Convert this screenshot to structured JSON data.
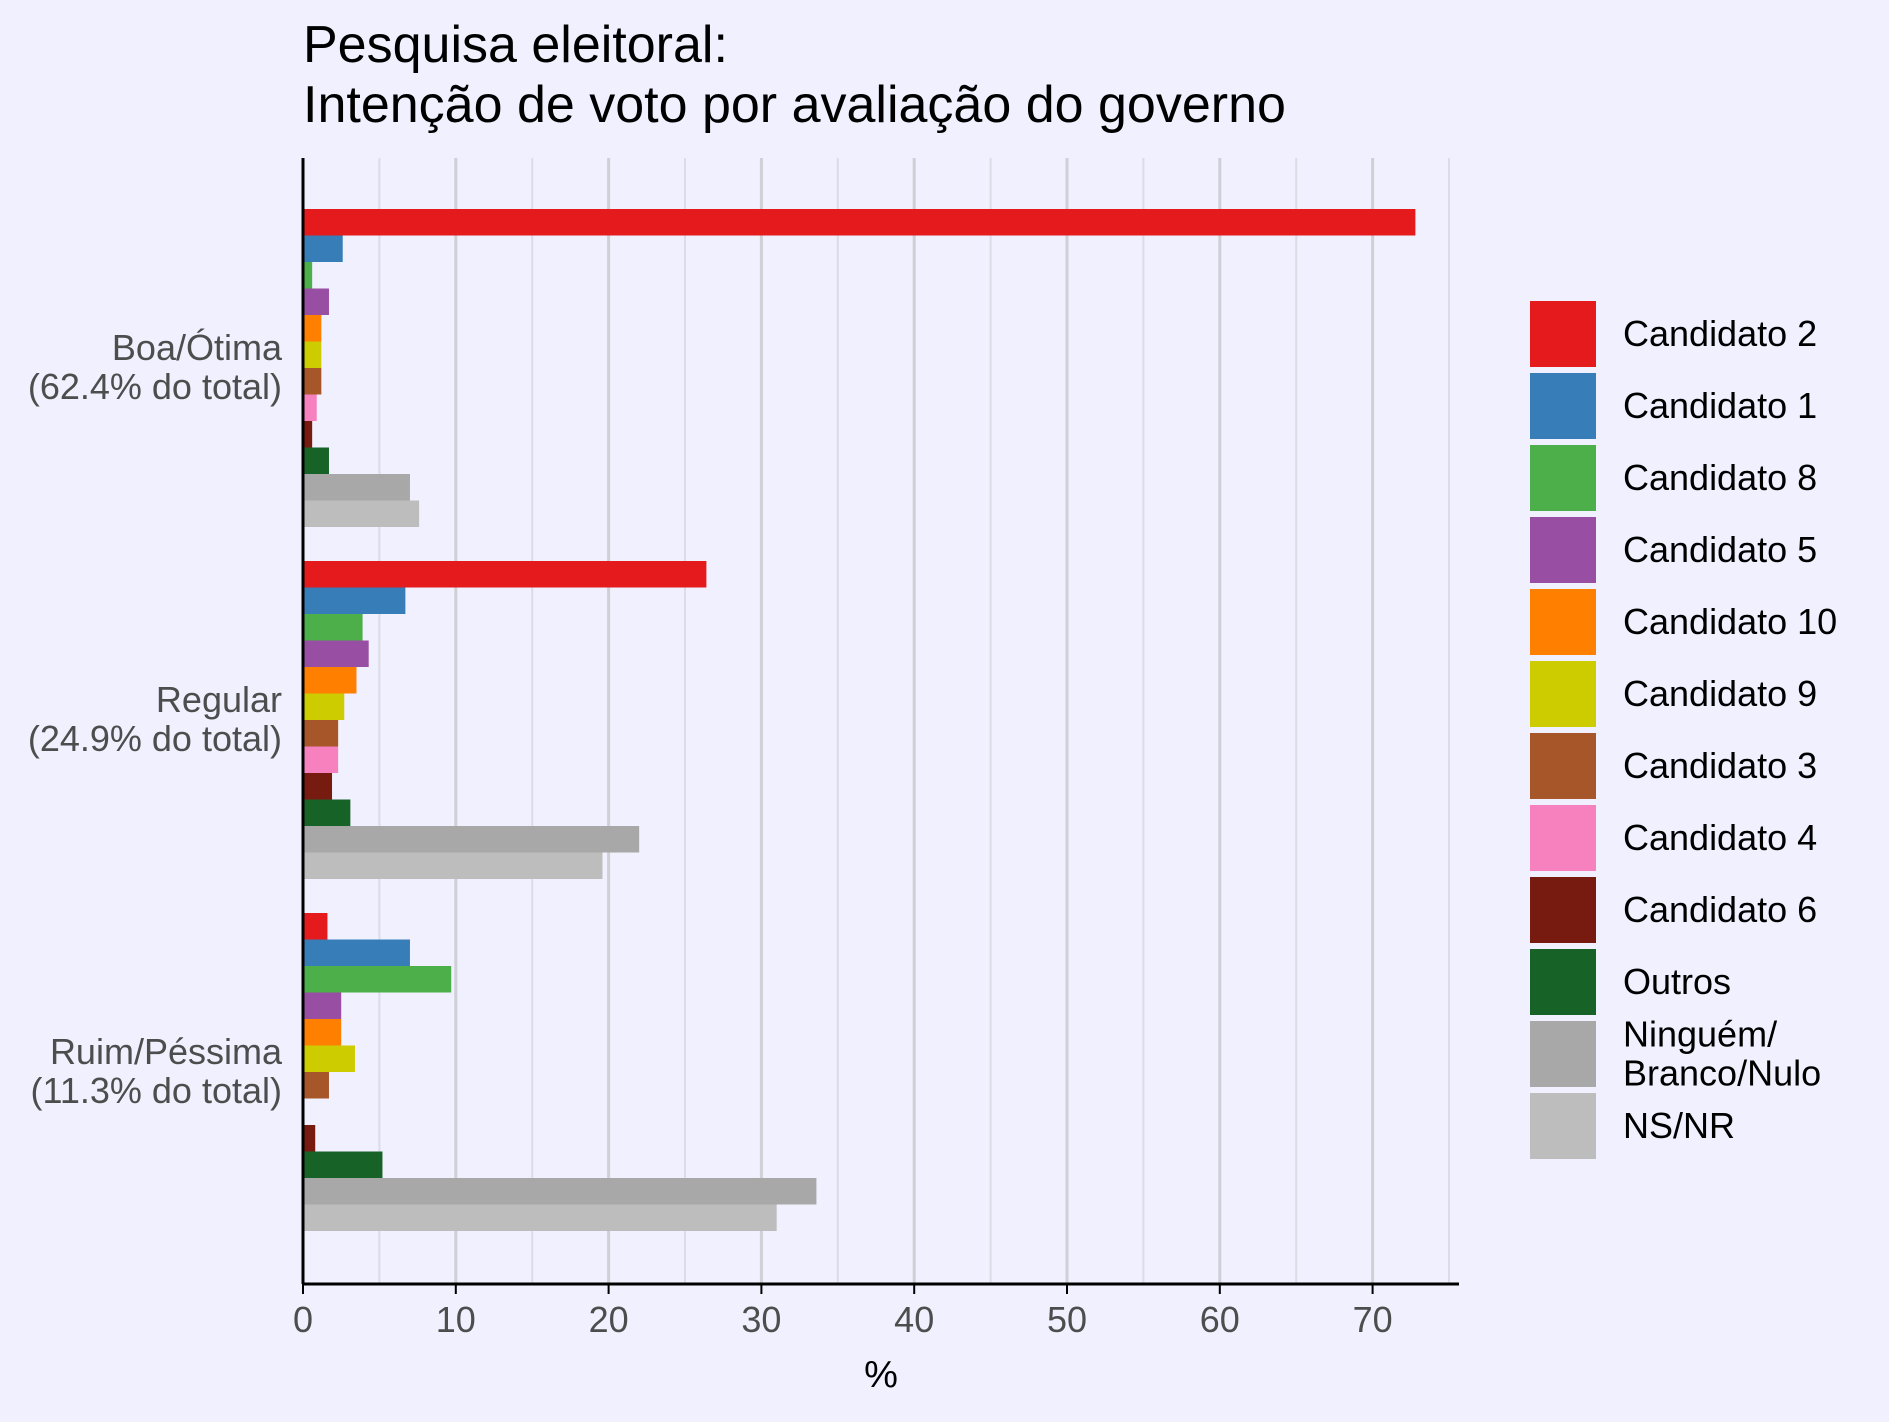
{
  "chart_data": {
    "type": "bar",
    "orientation": "horizontal",
    "title_line1": "Pesquisa eleitoral:",
    "title_line2": "Intenção de voto por avaliação do governo",
    "xlabel": "%",
    "ylabel": "",
    "xlim": [
      0,
      75
    ],
    "x_ticks": [
      0,
      10,
      20,
      30,
      40,
      50,
      60,
      70
    ],
    "grid": "vertical",
    "legend_position": "right",
    "categories": [
      {
        "line1": "Boa/Ótima",
        "line2": "(62.4% do total)"
      },
      {
        "line1": "Regular",
        "line2": "(24.9% do total)"
      },
      {
        "line1": "Ruim/Péssima",
        "line2": "(11.3% do total)"
      }
    ],
    "series": [
      {
        "name": "Candidato 2",
        "color": "#e41a1c",
        "values": [
          72.8,
          26.4,
          1.6
        ]
      },
      {
        "name": "Candidato 1",
        "color": "#377eb8",
        "values": [
          2.6,
          6.7,
          7.0
        ]
      },
      {
        "name": "Candidato 8",
        "color": "#4daf4a",
        "values": [
          0.6,
          3.9,
          9.7
        ]
      },
      {
        "name": "Candidato 5",
        "color": "#984ea3",
        "values": [
          1.7,
          4.3,
          2.5
        ]
      },
      {
        "name": "Candidato 10",
        "color": "#ff7f00",
        "values": [
          1.2,
          3.5,
          2.5
        ]
      },
      {
        "name": "Candidato 9",
        "color": "#cccc00",
        "values": [
          1.2,
          2.7,
          3.4
        ]
      },
      {
        "name": "Candidato 3",
        "color": "#a65628",
        "values": [
          1.2,
          2.3,
          1.7
        ]
      },
      {
        "name": "Candidato 4",
        "color": "#f781bf",
        "values": [
          0.9,
          2.3,
          0.0
        ]
      },
      {
        "name": "Candidato 6",
        "color": "#771a10",
        "values": [
          0.6,
          1.9,
          0.8
        ]
      },
      {
        "name": "Outros",
        "color": "#176226",
        "values": [
          1.7,
          3.1,
          5.2
        ]
      },
      {
        "name": "Ninguém/\nBranco/Nulo",
        "color": "#a8a8a8",
        "values": [
          7.0,
          22.0,
          33.6
        ]
      },
      {
        "name": "NS/NR",
        "color": "#bdbdbd",
        "values": [
          7.6,
          19.6,
          31.0
        ]
      }
    ]
  }
}
